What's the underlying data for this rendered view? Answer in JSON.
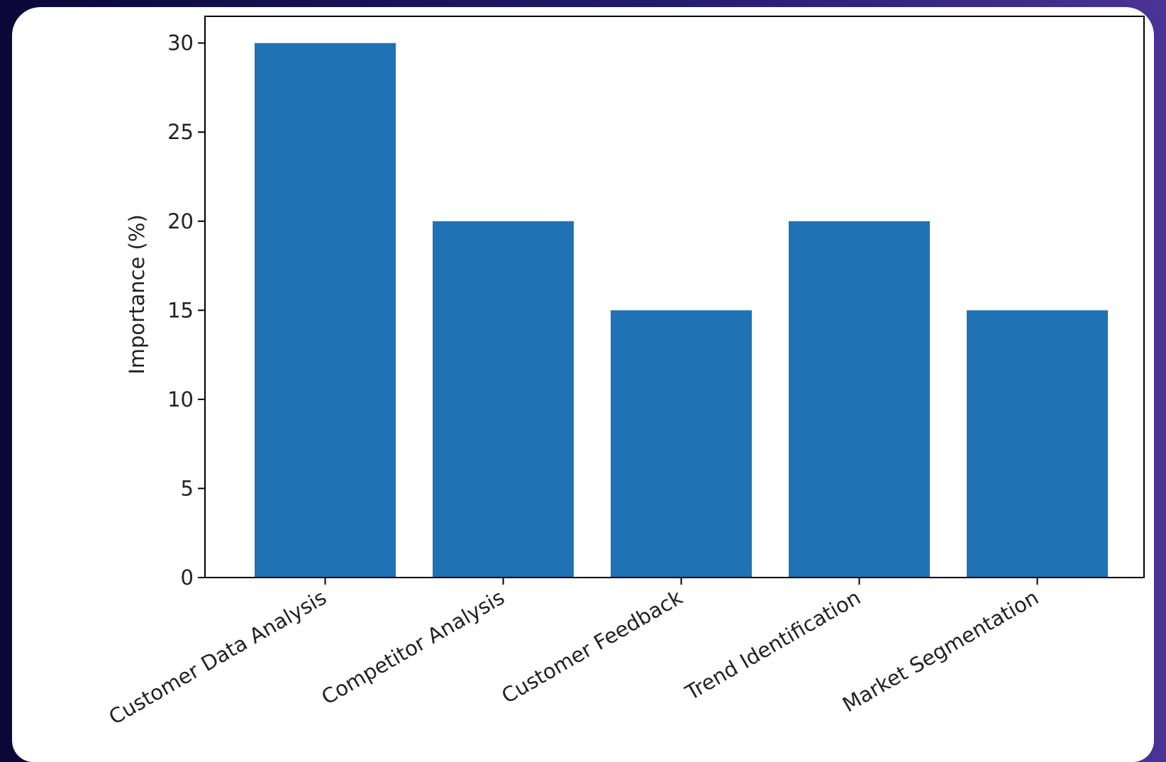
{
  "colors": {
    "bar": "#1f72b4",
    "axis": "#000000",
    "card": "#ffffff"
  },
  "chart_data": {
    "type": "bar",
    "title": "",
    "xlabel": "",
    "ylabel": "Importance (%)",
    "categories": [
      "Customer Data Analysis",
      "Competitor Analysis",
      "Customer Feedback",
      "Trend Identification",
      "Market Segmentation"
    ],
    "values": [
      30,
      20,
      15,
      20,
      15
    ],
    "ylim": [
      0,
      31.5
    ],
    "yticks": [
      0,
      5,
      10,
      15,
      20,
      25,
      30
    ],
    "grid": false,
    "legend": "none"
  }
}
